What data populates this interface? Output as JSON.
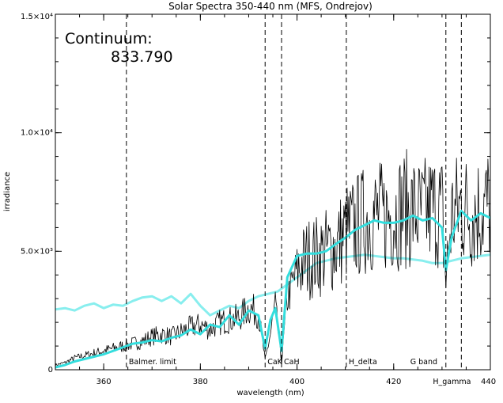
{
  "chart_data": {
    "type": "line",
    "title": "Solar Spectra 350-440 nm (MFS, Ondrejov)",
    "xlabel": "wavelength (nm)",
    "ylabel": "irradiance",
    "xlim": [
      350,
      440
    ],
    "ylim": [
      0,
      15000
    ],
    "x_ticks": [
      {
        "value": 360,
        "label": "360"
      },
      {
        "value": 380,
        "label": "380"
      },
      {
        "value": 400,
        "label": "400"
      },
      {
        "value": 420,
        "label": "420"
      },
      {
        "value": 440,
        "label": "440"
      }
    ],
    "y_ticks": [
      {
        "value": 0,
        "label": "0"
      },
      {
        "value": 5000,
        "label": "5.0×10³"
      },
      {
        "value": 10000,
        "label": "1.0×10⁴"
      },
      {
        "value": 15000,
        "label": "1.5×10⁴"
      }
    ],
    "annotation": {
      "title": "Continuum:",
      "value": "833.790"
    },
    "lines": [
      {
        "x": 364.7,
        "label": "Balmer. limit"
      },
      {
        "x": 393.4,
        "label": "CaK"
      },
      {
        "x": 396.8,
        "label": "CaH"
      },
      {
        "x": 410.2,
        "label": "H_delta"
      },
      {
        "x": 430.8,
        "label": "G band"
      },
      {
        "x": 434.0,
        "label": "H_gamma"
      }
    ],
    "series": [
      {
        "color": "#000000",
        "style": "thin-noisy",
        "x": [
          350,
          352,
          354,
          356,
          358,
          360,
          362,
          364,
          366,
          368,
          370,
          372,
          374,
          376,
          378,
          380,
          382,
          384,
          386,
          388,
          390,
          392,
          393.4,
          394.5,
          395.5,
          396.8,
          398,
          400,
          402,
          404,
          406,
          408,
          410.2,
          412,
          414,
          416,
          418,
          420,
          422,
          424,
          426,
          428,
          430,
          430.8,
          432,
          434,
          436,
          438,
          440
        ],
        "y": [
          200,
          300,
          500,
          600,
          700,
          800,
          900,
          1000,
          1100,
          1200,
          1400,
          1500,
          1400,
          1600,
          1800,
          1900,
          1700,
          2000,
          2100,
          2200,
          2600,
          2400,
          400,
          1500,
          2700,
          300,
          3000,
          4200,
          4700,
          4800,
          5000,
          5200,
          5800,
          6000,
          6300,
          6500,
          6400,
          6600,
          6800,
          6700,
          6500,
          6800,
          6700,
          3800,
          6500,
          6900,
          6600,
          6800,
          7000
        ]
      },
      {
        "color": "#33dddd",
        "style": "thick-smoothed",
        "x": [
          350,
          352,
          354,
          356,
          358,
          360,
          362,
          364,
          366,
          368,
          370,
          372,
          374,
          376,
          378,
          380,
          382,
          384,
          386,
          388,
          390,
          392,
          393.4,
          394.5,
          395.5,
          396.8,
          398,
          400,
          402,
          404,
          406,
          408,
          410.2,
          412,
          414,
          416,
          418,
          420,
          422,
          424,
          426,
          428,
          430,
          430.8,
          432,
          434,
          436,
          438,
          440
        ],
        "y": [
          100,
          200,
          350,
          450,
          550,
          650,
          800,
          950,
          1100,
          1150,
          1250,
          1200,
          1350,
          1450,
          1700,
          1500,
          1900,
          1800,
          2300,
          1900,
          2500,
          2300,
          900,
          2100,
          2600,
          800,
          3900,
          4800,
          4900,
          4900,
          5000,
          5300,
          5600,
          5900,
          6100,
          6300,
          6200,
          6200,
          6300,
          6500,
          6300,
          6400,
          6000,
          4200,
          5600,
          6700,
          6300,
          6600,
          6400
        ]
      },
      {
        "color": "#88eeee",
        "style": "thick-continuum",
        "x": [
          350,
          352,
          354,
          356,
          358,
          360,
          362,
          364,
          366,
          368,
          370,
          372,
          374,
          376,
          378,
          380,
          382,
          384,
          386,
          388,
          390,
          392,
          394,
          396,
          398,
          400,
          402,
          404,
          406,
          408,
          410,
          412,
          414,
          416,
          418,
          420,
          422,
          424,
          426,
          428,
          430,
          432,
          434,
          436,
          438,
          440
        ],
        "y": [
          2550,
          2600,
          2500,
          2700,
          2800,
          2600,
          2750,
          2700,
          2900,
          3050,
          3100,
          2900,
          3100,
          2800,
          3200,
          2700,
          2300,
          2500,
          2700,
          2600,
          2900,
          3100,
          3200,
          3300,
          3600,
          3900,
          4200,
          4500,
          4600,
          4700,
          4750,
          4800,
          4850,
          4800,
          4750,
          4700,
          4700,
          4650,
          4600,
          4500,
          4500,
          4600,
          4700,
          4750,
          4800,
          4850
        ]
      }
    ]
  }
}
